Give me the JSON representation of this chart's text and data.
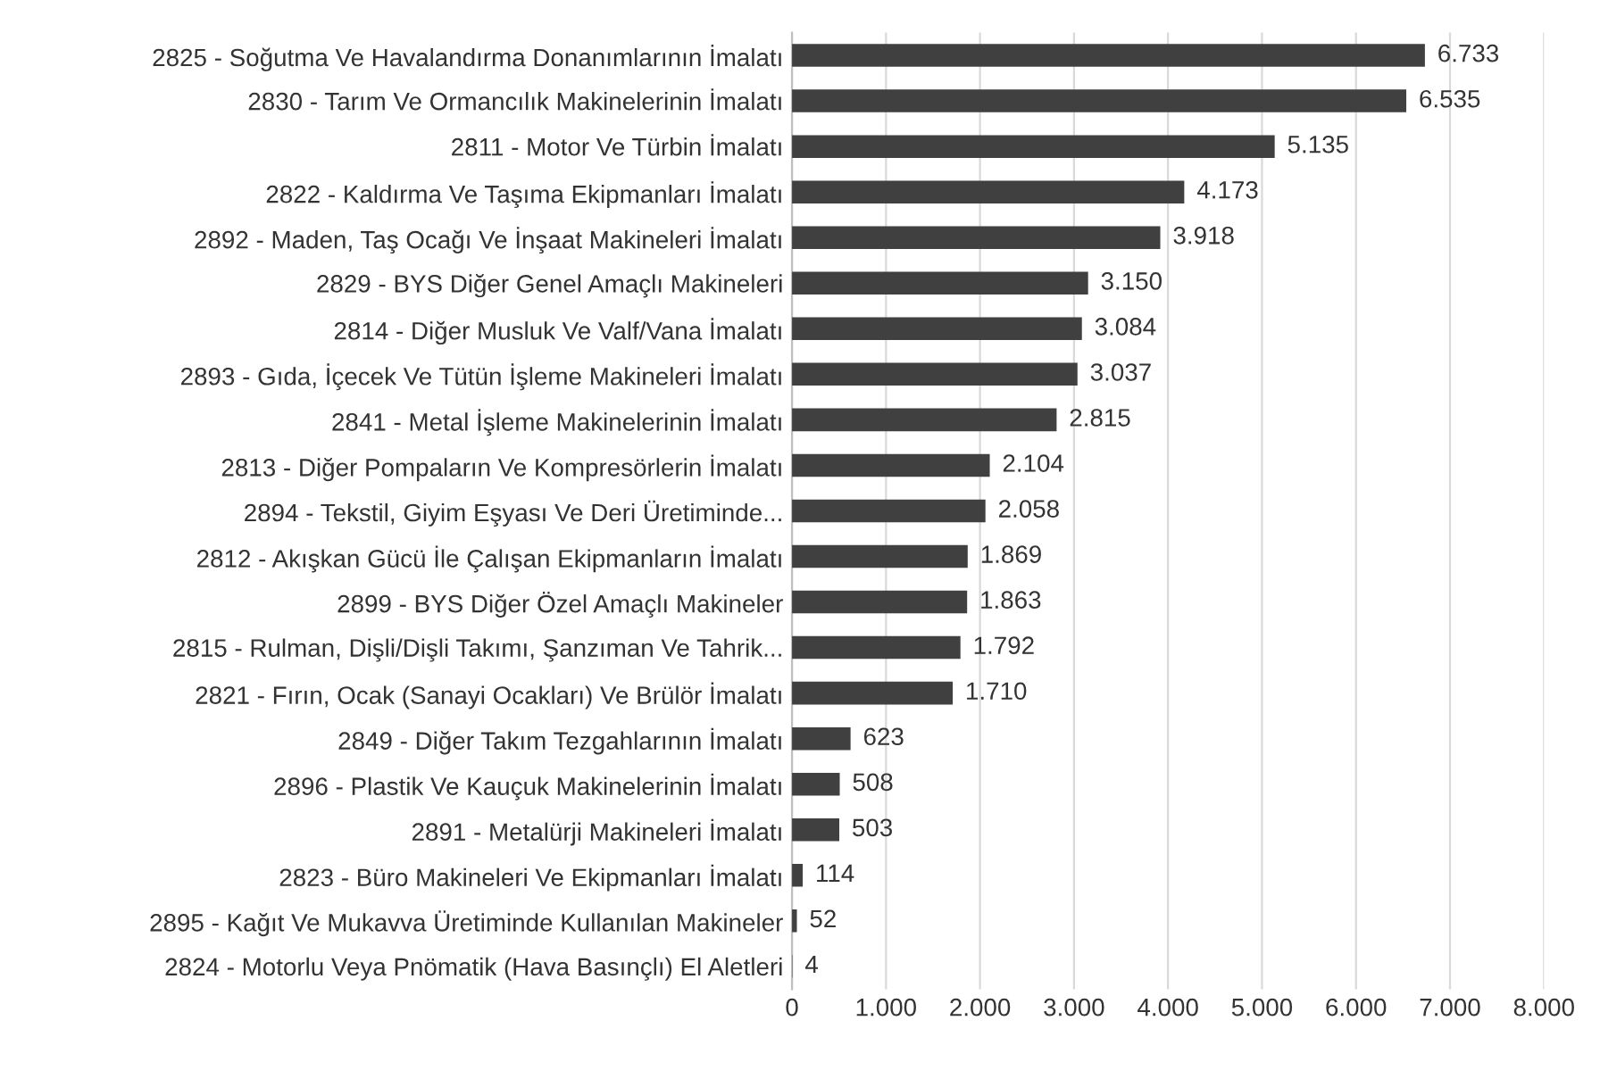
{
  "chart_data": {
    "type": "bar",
    "orientation": "horizontal",
    "categories": [
      "2825 - Soğutma Ve Havalandırma Donanımlarının İmalatı",
      "2830 - Tarım Ve Ormancılık Makinelerinin İmalatı",
      "2811 - Motor Ve Türbin İmalatı",
      "2822 - Kaldırma Ve Taşıma Ekipmanları İmalatı",
      "2892 - Maden, Taş Ocağı Ve İnşaat Makineleri İmalatı",
      "2829 - BYS Diğer Genel Amaçlı Makineleri",
      "2814 - Diğer Musluk Ve Valf/Vana İmalatı",
      "2893 - Gıda, İçecek Ve Tütün İşleme Makineleri İmalatı",
      "2841 - Metal İşleme Makinelerinin İmalatı",
      "2813 - Diğer Pompaların Ve Kompresörlerin İmalatı",
      "2894 - Tekstil, Giyim Eşyası Ve Deri Üretiminde...",
      "2812 - Akışkan Gücü İle Çalışan Ekipmanların İmalatı",
      "2899 - BYS Diğer Özel Amaçlı Makineler",
      "2815 - Rulman, Dişli/Dişli Takımı, Şanzıman Ve Tahrik...",
      "2821 - Fırın, Ocak (Sanayi Ocakları) Ve Brülör İmalatı",
      "2849 - Diğer Takım Tezgahlarının İmalatı",
      "2896 - Plastik Ve Kauçuk Makinelerinin İmalatı",
      "2891 - Metalürji Makineleri İmalatı",
      "2823 - Büro Makineleri Ve Ekipmanları İmalatı",
      "2895 - Kağıt Ve Mukavva Üretiminde Kullanılan Makineler",
      "2824 - Motorlu Veya Pnömatik (Hava Basınçlı) El Aletleri"
    ],
    "values": [
      6733,
      6535,
      5135,
      4173,
      3918,
      3150,
      3084,
      3037,
      2815,
      2104,
      2058,
      1869,
      1863,
      1792,
      1710,
      623,
      508,
      503,
      114,
      52,
      4
    ],
    "value_labels": [
      "6.733",
      "6.535",
      "5.135",
      "4.173",
      "3.918",
      "3.150",
      "3.084",
      "3.037",
      "2.815",
      "2.104",
      "2.058",
      "1.869",
      "1.863",
      "1.792",
      "1.710",
      "623",
      "508",
      "503",
      "114",
      "52",
      "4"
    ],
    "color": "#404040",
    "xlim": [
      0,
      8000
    ],
    "xticks": [
      0,
      {
        "value": 1000,
        "label": "1.000"
      },
      {
        "value": 2000,
        "label": "2.000"
      },
      {
        "value": 3000,
        "label": "3.000"
      },
      {
        "value": 4000,
        "label": "4.000"
      },
      {
        "value": 5000,
        "label": "5.000"
      },
      {
        "value": 6000,
        "label": "6.000"
      },
      {
        "value": 7000,
        "label": "7.000"
      },
      {
        "value": 8000,
        "label": "8.000"
      }
    ],
    "grid": "x"
  }
}
